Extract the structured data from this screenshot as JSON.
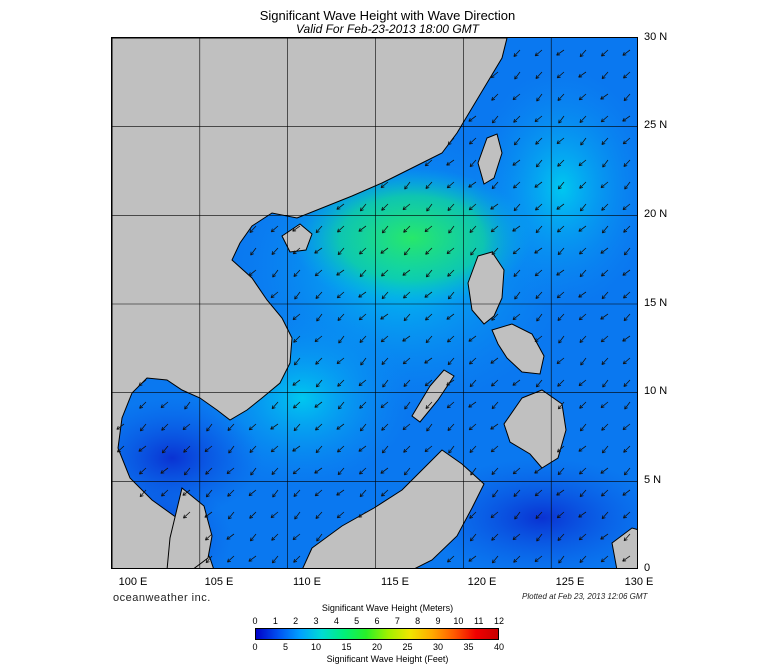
{
  "header": {
    "title": "Significant Wave Height with Wave Direction",
    "subtitle": "Valid For Feb-23-2013 18:00 GMT"
  },
  "map": {
    "lon_range": [
      100,
      130
    ],
    "lat_range": [
      0,
      30
    ],
    "lat_labels": [
      "30 N",
      "25 N",
      "20 N",
      "15 N",
      "10 N",
      "5 N",
      "0"
    ],
    "lon_labels": [
      "100 E",
      "105 E",
      "110 E",
      "115 E",
      "120 E",
      "125 E",
      "130 E"
    ],
    "land_color": "#c0c0c0",
    "predominant_wave_direction": "toward southwest"
  },
  "footer": {
    "brand": "oceanweather inc.",
    "plotted": "Plotted at Feb 23, 2013 12:06 GMT"
  },
  "colorbar": {
    "meters_title": "Significant Wave Height (Meters)",
    "feet_title": "Significant Wave Height (Feet)",
    "meters_ticks": [
      "0",
      "1",
      "2",
      "3",
      "4",
      "5",
      "6",
      "7",
      "8",
      "9",
      "10",
      "11",
      "12"
    ],
    "feet_ticks": [
      "0",
      "5",
      "10",
      "15",
      "20",
      "25",
      "30",
      "35",
      "40"
    ],
    "colors": [
      "#0000c8",
      "#0050f0",
      "#00a0ff",
      "#00dcd2",
      "#00f07a",
      "#28f028",
      "#a0f000",
      "#f0e600",
      "#ffaa00",
      "#ff5a00",
      "#f00000",
      "#c80000"
    ]
  }
}
